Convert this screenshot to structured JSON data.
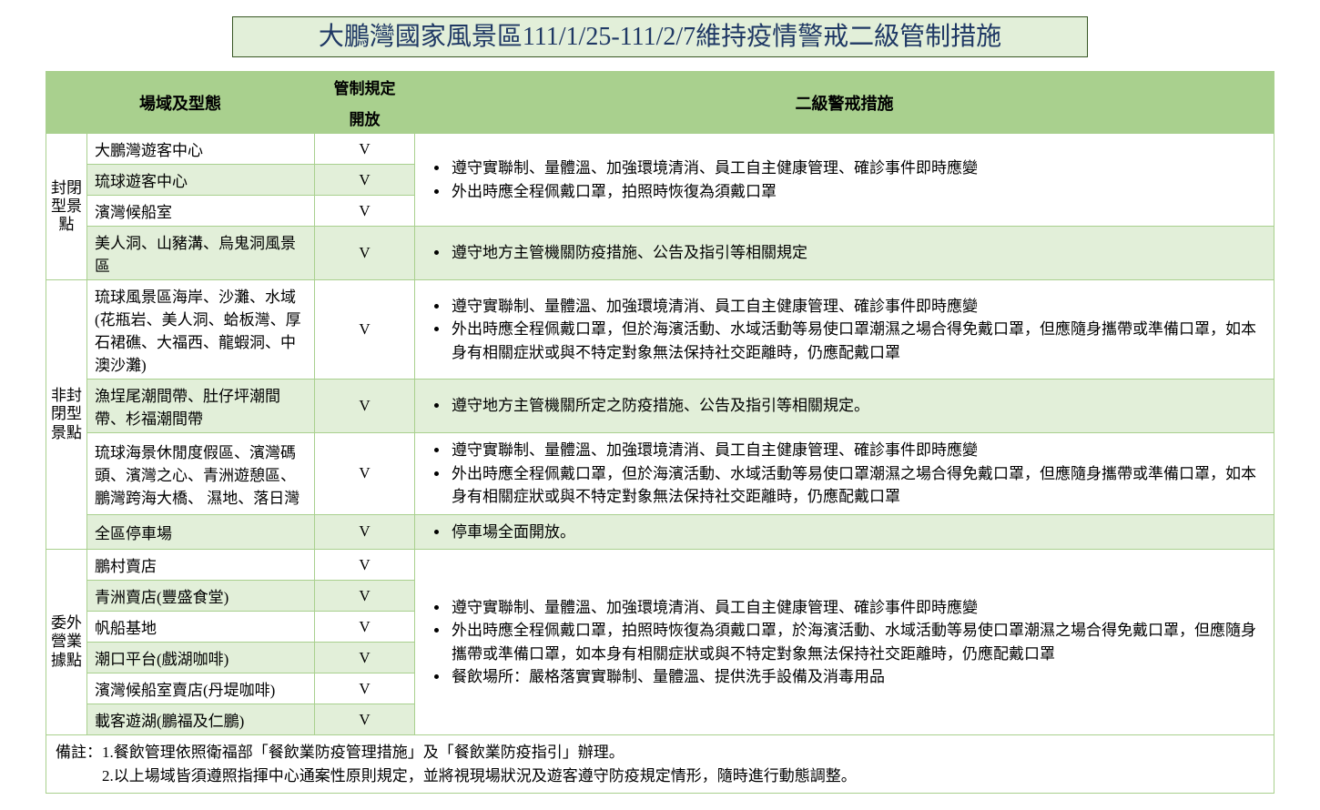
{
  "colors": {
    "header_bg": "#a9d08e",
    "alt_row_bg": "#e2efd9",
    "border": "#a9d08e",
    "title_text": "#1f3864",
    "title_border": "#385723",
    "bullet": "#3a5a2a"
  },
  "title": "大鵬灣國家風景區111/1/25-111/2/7維持疫情警戒二級管制措施",
  "header": {
    "venue_type": "場域及型態",
    "regulation": "管制規定",
    "open": "開放",
    "measures": "二級警戒措施"
  },
  "sections": [
    {
      "category": "封閉型景點",
      "rows": [
        {
          "location": "大鵬灣遊客中心",
          "check": "V",
          "measures_rowspan": 3,
          "measures": [
            "遵守實聯制、量體溫、加強環境清消、員工自主健康管理、確診事件即時應變",
            "外出時應全程佩戴口罩，拍照時恢復為須戴口罩"
          ]
        },
        {
          "location": "琉球遊客中心",
          "check": "V"
        },
        {
          "location": "濱灣候船室",
          "check": "V"
        },
        {
          "location": "美人洞、山豬溝、烏鬼洞風景區",
          "check": "V",
          "measures": [
            "遵守地方主管機關防疫措施、公告及指引等相關規定"
          ]
        }
      ]
    },
    {
      "category": "非封閉型景點",
      "rows": [
        {
          "location": "琉球風景區海岸、沙灘、水域(花瓶岩、美人洞、蛤板灣、厚石裙礁、大福西、龍蝦洞、中澳沙灘)",
          "check": "V",
          "measures": [
            "遵守實聯制、量體溫、加強環境清消、員工自主健康管理、確診事件即時應變",
            "外出時應全程佩戴口罩，但於海濱活動、水域活動等易使口罩潮濕之場合得免戴口罩，但應隨身攜帶或準備口罩，如本身有相關症狀或與不特定對象無法保持社交距離時，仍應配戴口罩"
          ]
        },
        {
          "location": "漁埕尾潮間帶、肚仔坪潮間帶、杉福潮間帶",
          "check": "V",
          "measures": [
            "遵守地方主管機關所定之防疫措施、公告及指引等相關規定。"
          ]
        },
        {
          "location": "琉球海景休閒度假區、濱灣碼頭、濱灣之心、青洲遊憩區、鵬灣跨海大橋、 濕地、落日灣",
          "check": "V",
          "measures": [
            "遵守實聯制、量體溫、加強環境清消、員工自主健康管理、確診事件即時應變",
            "外出時應全程佩戴口罩，但於海濱活動、水域活動等易使口罩潮濕之場合得免戴口罩，但應隨身攜帶或準備口罩，如本身有相關症狀或與不特定對象無法保持社交距離時，仍應配戴口罩"
          ]
        },
        {
          "location": "全區停車場",
          "check": "V",
          "measures": [
            "停車場全面開放。"
          ]
        }
      ]
    },
    {
      "category": "委外營業據點",
      "rows": [
        {
          "location": "鵬村賣店",
          "check": "V",
          "measures_rowspan": 6,
          "measures": [
            "遵守實聯制、量體溫、加強環境清消、員工自主健康管理、確診事件即時應變",
            "外出時應全程佩戴口罩，拍照時恢復為須戴口罩，於海濱活動、水域活動等易使口罩潮濕之場合得免戴口罩，但應隨身攜帶或準備口罩，如本身有相關症狀或與不特定對象無法保持社交距離時，仍應配戴口罩",
            "餐飲場所：嚴格落實實聯制、量體溫、提供洗手設備及消毒用品"
          ]
        },
        {
          "location": "青洲賣店(豐盛食堂)",
          "check": "V"
        },
        {
          "location": "帆船基地",
          "check": "V"
        },
        {
          "location": "潮口平台(戲湖咖啡)",
          "check": "V"
        },
        {
          "location": "濱灣候船室賣店(丹堤咖啡)",
          "check": "V"
        },
        {
          "location": "載客遊湖(鵬福及仁鵬)",
          "check": "V"
        }
      ]
    }
  ],
  "notes_label": "備註：",
  "notes": [
    "1.餐飲管理依照衛福部「餐飲業防疫管理措施」及「餐飲業防疫指引」辦理。",
    "2.以上場域皆須遵照指揮中心通案性原則規定，並將視現場狀況及遊客遵守防疫規定情形，隨時進行動態調整。"
  ]
}
